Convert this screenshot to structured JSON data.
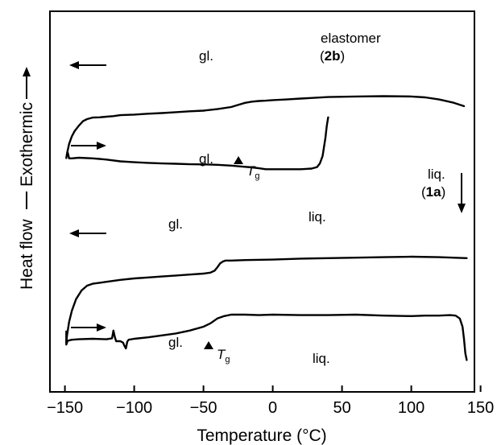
{
  "chart_data": {
    "type": "line",
    "title": "",
    "xlabel": "Temperature (°C)",
    "ylabel_parts": [
      "Heat flow",
      "Exothermic"
    ],
    "xlim": [
      -155,
      150
    ],
    "xticks": [
      -150,
      -100,
      -50,
      0,
      50,
      100,
      150
    ],
    "xtick_labels": [
      "−150",
      "−100",
      "−50",
      "0",
      "50",
      "100",
      "150"
    ],
    "y_ticks_shown": false,
    "grid": false,
    "legend": "none",
    "series": [
      {
        "x": [
          -148,
          -147,
          -145,
          -140,
          -130,
          -125,
          -120,
          -110,
          -100,
          -90,
          -80,
          -70,
          -60,
          -50,
          -40,
          -30,
          -20,
          -15,
          -10,
          -5,
          0,
          10,
          20,
          28,
          32,
          34,
          36,
          38,
          39,
          40
        ],
        "y": [
          0.42,
          0.22,
          0.22,
          0.24,
          0.22,
          0.2,
          0.18,
          0.12,
          0.09,
          0.07,
          0.05,
          0.04,
          0.025,
          0.02,
          0.005,
          -0.02,
          -0.06,
          -0.08,
          -0.11,
          -0.14,
          -0.14,
          -0.14,
          -0.14,
          -0.12,
          -0.07,
          0.05,
          0.3,
          0.9,
          1.3,
          1.58
        ],
        "label": "elastomer (2b)",
        "scan": "cooling"
      },
      {
        "x": [
          -149,
          -148.5,
          -147,
          -145,
          -143,
          -140,
          -137,
          -134,
          -130,
          -125,
          -120,
          -115,
          -110,
          -100,
          -90,
          -80,
          -70,
          -60,
          -50,
          -40,
          -30,
          -25,
          -20,
          -15,
          -10,
          -5,
          0,
          10,
          20,
          40,
          60,
          80,
          100,
          110,
          120,
          130,
          138
        ],
        "y": [
          0.23,
          0.38,
          0.7,
          0.95,
          1.12,
          1.3,
          1.45,
          1.52,
          1.57,
          1.58,
          1.6,
          1.62,
          1.65,
          1.67,
          1.7,
          1.72,
          1.75,
          1.78,
          1.8,
          1.85,
          1.92,
          1.99,
          2.06,
          2.1,
          2.12,
          2.13,
          2.15,
          2.17,
          2.2,
          2.25,
          2.27,
          2.28,
          2.27,
          2.24,
          2.17,
          2.07,
          1.95
        ],
        "label": "liq. (1a)",
        "scan": "heating"
      },
      {
        "x": [
          -149,
          -149,
          -148,
          -145,
          -140,
          -130,
          -120,
          -116,
          -115,
          -114,
          -113,
          -110,
          -108,
          -107,
          -106,
          -105,
          -104,
          -100,
          -90,
          -80,
          -70,
          -60,
          -50,
          -45,
          -40,
          -35,
          -30,
          -20,
          -10,
          0,
          20,
          40,
          60,
          80,
          100,
          110,
          120,
          128,
          132,
          135,
          137,
          138,
          139,
          140
        ],
        "y": [
          0.35,
          0.08,
          0.16,
          0.18,
          0.19,
          0.2,
          0.19,
          0.21,
          0.37,
          0.24,
          0.15,
          0.15,
          0.12,
          0.05,
          -0.0,
          0.14,
          0.18,
          0.2,
          0.23,
          0.27,
          0.31,
          0.37,
          0.45,
          0.52,
          0.62,
          0.67,
          0.7,
          0.7,
          0.69,
          0.7,
          0.69,
          0.69,
          0.7,
          0.68,
          0.67,
          0.68,
          0.68,
          0.69,
          0.68,
          0.62,
          0.45,
          0.2,
          -0.1,
          -0.24
        ],
        "scan": "cooling"
      },
      {
        "x": [
          -149,
          -148.5,
          -147,
          -145,
          -142,
          -138,
          -134,
          -130,
          -125,
          -120,
          -110,
          -100,
          -90,
          -80,
          -70,
          -60,
          -50,
          -45,
          -42,
          -40,
          -38,
          -36,
          -34,
          -30,
          -20,
          0,
          20,
          40,
          60,
          80,
          100,
          120,
          130,
          140
        ],
        "y": [
          0.12,
          0.27,
          0.55,
          0.78,
          1.02,
          1.2,
          1.3,
          1.34,
          1.36,
          1.38,
          1.42,
          1.45,
          1.47,
          1.49,
          1.51,
          1.53,
          1.55,
          1.57,
          1.61,
          1.68,
          1.76,
          1.8,
          1.82,
          1.82,
          1.83,
          1.84,
          1.86,
          1.87,
          1.88,
          1.89,
          1.9,
          1.89,
          1.88,
          1.87
        ],
        "scan": "heating"
      }
    ],
    "annotations": {
      "gl": "gl.",
      "liq": "liq.",
      "elastomer": "elastomer",
      "label_2b_open": "(",
      "label_2b_bold": "2b",
      "label_2b_close": ")",
      "label_1a_open": "(",
      "label_1a_bold": "1a",
      "label_1a_close": ")",
      "tg_main": "T",
      "tg_sub": "g"
    }
  }
}
